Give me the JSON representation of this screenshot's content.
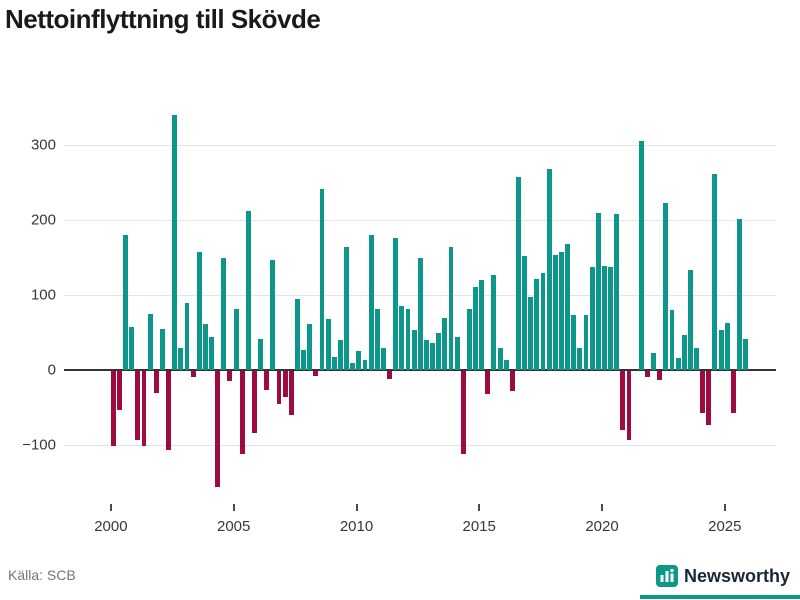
{
  "title": "Nettoinflyttning till Skövde",
  "source": "Källa: SCB",
  "logo": {
    "text": "Newsworthy",
    "icon": "bar-chart-icon",
    "accent": "#0d968a"
  },
  "colors": {
    "positive": "#0d968a",
    "negative": "#9d0b41",
    "grid": "#e4e4e4",
    "axis": "#343434",
    "label": "#383838",
    "title": "#1a1a1a",
    "source_text": "#767676",
    "logo_text": "#1b2733"
  },
  "chart_data": {
    "type": "bar",
    "title": "Nettoinflyttning till Skövde",
    "xlabel": "",
    "ylabel": "",
    "frequency": "quarterly",
    "grid": "horizontal",
    "legend": "none",
    "x_ticks": [
      2000,
      2005,
      2010,
      2015,
      2020,
      2025
    ],
    "y_ticks": [
      300,
      200,
      100,
      0,
      -100
    ],
    "y_tick_labels": [
      "300",
      "200",
      "100",
      "0",
      "−100"
    ],
    "ylim": [
      -170,
      355
    ],
    "series": [
      {
        "year": 2000,
        "q": [
          -100,
          -52,
          180,
          57
        ]
      },
      {
        "year": 2001,
        "q": [
          -92,
          -100,
          75,
          -29
        ]
      },
      {
        "year": 2002,
        "q": [
          55,
          -105,
          340,
          29
        ]
      },
      {
        "year": 2003,
        "q": [
          90,
          -8,
          157,
          62
        ]
      },
      {
        "year": 2004,
        "q": [
          44,
          -155,
          149,
          -13
        ]
      },
      {
        "year": 2005,
        "q": [
          82,
          -110,
          212,
          -83
        ]
      },
      {
        "year": 2006,
        "q": [
          41,
          -25,
          147,
          -44
        ]
      },
      {
        "year": 2007,
        "q": [
          -34,
          -59,
          95,
          27
        ]
      },
      {
        "year": 2008,
        "q": [
          61,
          -6,
          242,
          68
        ]
      },
      {
        "year": 2009,
        "q": [
          17,
          40,
          164,
          9
        ]
      },
      {
        "year": 2010,
        "q": [
          26,
          14,
          180,
          81
        ]
      },
      {
        "year": 2011,
        "q": [
          29,
          -10,
          176,
          85
        ]
      },
      {
        "year": 2012,
        "q": [
          81,
          54,
          150,
          40
        ]
      },
      {
        "year": 2013,
        "q": [
          36,
          50,
          70,
          164
        ]
      },
      {
        "year": 2014,
        "q": [
          44,
          -110,
          82,
          111
        ]
      },
      {
        "year": 2015,
        "q": [
          120,
          -30,
          127,
          30
        ]
      },
      {
        "year": 2016,
        "q": [
          13,
          -27,
          257,
          152
        ]
      },
      {
        "year": 2017,
        "q": [
          98,
          122,
          130,
          268
        ]
      },
      {
        "year": 2018,
        "q": [
          153,
          158,
          168,
          73
        ]
      },
      {
        "year": 2019,
        "q": [
          30,
          73,
          138,
          209
        ]
      },
      {
        "year": 2020,
        "q": [
          139,
          138,
          208,
          -79
        ]
      },
      {
        "year": 2021,
        "q": [
          -92,
          0,
          305,
          -8
        ]
      },
      {
        "year": 2022,
        "q": [
          23,
          -12,
          223,
          80
        ]
      },
      {
        "year": 2023,
        "q": [
          16,
          47,
          133,
          29
        ]
      },
      {
        "year": 2024,
        "q": [
          -56,
          -72,
          261,
          53
        ]
      },
      {
        "year": 2025,
        "q": [
          63,
          -56,
          202,
          41
        ]
      }
    ]
  }
}
